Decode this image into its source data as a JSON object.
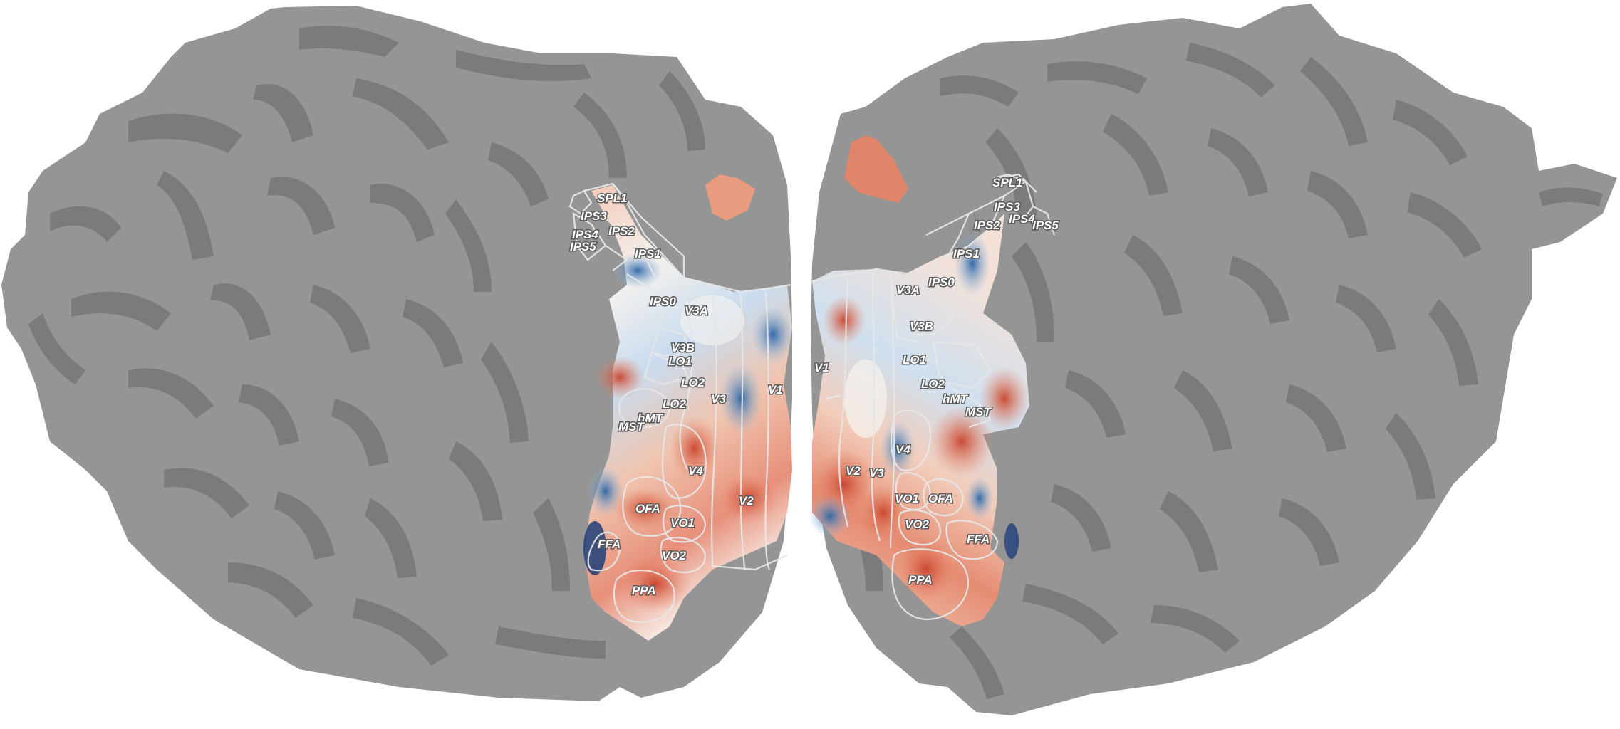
{
  "colors": {
    "background": "#ffffff",
    "gyri": "#959595",
    "sulci": "#7b7b7b",
    "positive": "#d9583a",
    "positive_light": "#f1b8a0",
    "negative": "#2f6fb0",
    "negative_light": "#a9c8e3",
    "neutral": "#f3efec",
    "roi_border": "#e6e6e6"
  },
  "left_hemisphere": {
    "labels": {
      "spl1": "SPL1",
      "ips3": "IPS3",
      "ips4": "IPS4",
      "ips5": "IPS5",
      "ips2": "IPS2",
      "ips1": "IPS1",
      "ips0": "IPS0",
      "v3a": "V3A",
      "v3b": "V3B",
      "lo1": "LO1",
      "lo2": "LO2",
      "hmt": "hMT",
      "mst": "MST",
      "v3": "V3",
      "v1": "V1",
      "v4": "V4",
      "v2": "V2",
      "ofa": "OFA",
      "vo1": "VO1",
      "vo2": "VO2",
      "ffa": "FFA",
      "ppa": "PPA"
    }
  },
  "right_hemisphere": {
    "labels": {
      "spl1": "SPL1",
      "ips3": "IPS3",
      "ips4": "IPS4",
      "ips5": "IPS5",
      "ips2": "IPS2",
      "ips1": "IPS1",
      "ips0": "IPS0",
      "v3a": "V3A",
      "v3b": "V3B",
      "lo1": "LO1",
      "lo2": "LO2",
      "hmt": "hMT",
      "mst": "MST",
      "v1": "V1",
      "v4": "V4",
      "v2": "V2",
      "v3": "V3",
      "vo1": "VO1",
      "ofa": "OFA",
      "vo2": "VO2",
      "ffa": "FFA",
      "ppa": "PPA"
    }
  }
}
